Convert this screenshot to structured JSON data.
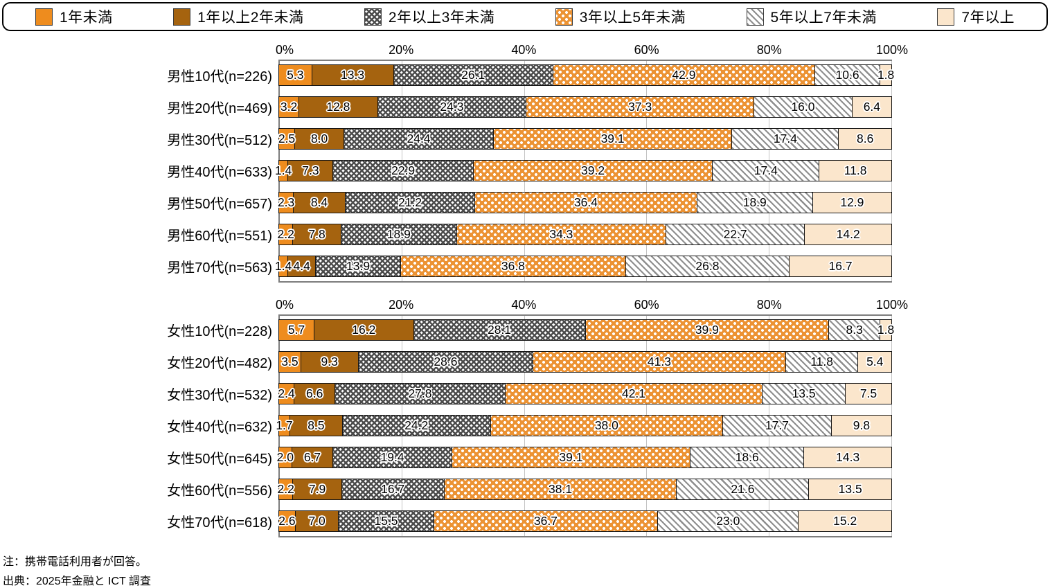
{
  "legend": {
    "items": [
      {
        "label": "1年未満",
        "series": "s0"
      },
      {
        "label": "1年以上2年未満",
        "series": "s1"
      },
      {
        "label": "2年以上3年未満",
        "series": "s2"
      },
      {
        "label": "3年以上5年未満",
        "series": "s3"
      },
      {
        "label": "5年以上7年未満",
        "series": "s4"
      },
      {
        "label": "7年以上",
        "series": "s5"
      }
    ]
  },
  "colors": {
    "orange_solid": "#EE8C1E",
    "brown_solid": "#A5630F",
    "crosshatch_gray": "#4b4b4b",
    "dot_orange": "#EC9334",
    "stripe_gray": "#8e8e8e",
    "cream_solid": "#FBE6CC",
    "gridline": "#c4c4c4",
    "axis_line": "#7d7d7d",
    "bar_border": "#151515"
  },
  "chart_data": [
    {
      "type": "bar",
      "variant": "horizontal-stacked-percent",
      "group": "男性",
      "xlim": [
        0,
        100
      ],
      "x_ticks": [
        "0%",
        "20%",
        "40%",
        "60%",
        "80%",
        "100%"
      ],
      "grid": true,
      "series_labels": [
        "1年未満",
        "1年以上2年未満",
        "2年以上3年未満",
        "3年以上5年未満",
        "5年以上7年未満",
        "7年以上"
      ],
      "rows": [
        {
          "label": "男性10代(n=226)",
          "values": [
            "5.3",
            "13.3",
            "26.1",
            "42.9",
            "10.6",
            "1.8"
          ]
        },
        {
          "label": "男性20代(n=469)",
          "values": [
            "3.2",
            "12.8",
            "24.3",
            "37.3",
            "16.0",
            "6.4"
          ]
        },
        {
          "label": "男性30代(n=512)",
          "values": [
            "2.5",
            "8.0",
            "24.4",
            "39.1",
            "17.4",
            "8.6"
          ]
        },
        {
          "label": "男性40代(n=633)",
          "values": [
            "1.4",
            "7.3",
            "22.9",
            "39.2",
            "17.4",
            "11.8"
          ]
        },
        {
          "label": "男性50代(n=657)",
          "values": [
            "2.3",
            "8.4",
            "21.2",
            "36.4",
            "18.9",
            "12.9"
          ]
        },
        {
          "label": "男性60代(n=551)",
          "values": [
            "2.2",
            "7.8",
            "18.9",
            "34.3",
            "22.7",
            "14.2"
          ]
        },
        {
          "label": "男性70代(n=563)",
          "values": [
            "1.4",
            "4.4",
            "13.9",
            "36.8",
            "26.8",
            "16.7"
          ]
        }
      ]
    },
    {
      "type": "bar",
      "variant": "horizontal-stacked-percent",
      "group": "女性",
      "xlim": [
        0,
        100
      ],
      "x_ticks": [
        "0%",
        "20%",
        "40%",
        "60%",
        "80%",
        "100%"
      ],
      "grid": true,
      "series_labels": [
        "1年未満",
        "1年以上2年未満",
        "2年以上3年未満",
        "3年以上5年未満",
        "5年以上7年未満",
        "7年以上"
      ],
      "rows": [
        {
          "label": "女性10代(n=228)",
          "values": [
            "5.7",
            "16.2",
            "28.1",
            "39.9",
            "8.3",
            "1.8"
          ]
        },
        {
          "label": "女性20代(n=482)",
          "values": [
            "3.5",
            "9.3",
            "28.6",
            "41.3",
            "11.8",
            "5.4"
          ]
        },
        {
          "label": "女性30代(n=532)",
          "values": [
            "2.4",
            "6.6",
            "27.8",
            "42.1",
            "13.5",
            "7.5"
          ]
        },
        {
          "label": "女性40代(n=632)",
          "values": [
            "1.7",
            "8.5",
            "24.2",
            "38.0",
            "17.7",
            "9.8"
          ]
        },
        {
          "label": "女性50代(n=645)",
          "values": [
            "2.0",
            "6.7",
            "19.4",
            "39.1",
            "18.6",
            "14.3"
          ]
        },
        {
          "label": "女性60代(n=556)",
          "values": [
            "2.2",
            "7.9",
            "16.7",
            "38.1",
            "21.6",
            "13.5"
          ]
        },
        {
          "label": "女性70代(n=618)",
          "values": [
            "2.6",
            "7.0",
            "15.5",
            "36.7",
            "23.0",
            "15.2"
          ]
        }
      ]
    }
  ],
  "notes": {
    "note": "注：携帯電話利用者が回答。",
    "source": "出典：2025年金融と ICT 調査"
  }
}
